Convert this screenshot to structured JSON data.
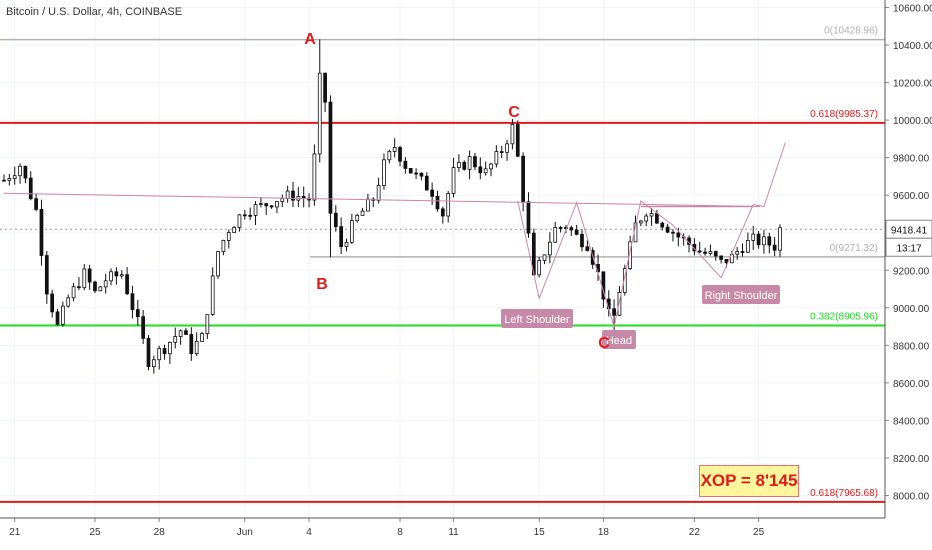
{
  "header": {
    "title": "Bitcoin / U.S. Dollar, 4h, COINBASE"
  },
  "chart_data": {
    "type": "candlestick",
    "ylim": [
      7880,
      10640
    ],
    "y_ticks": [
      "10600.00",
      "10400.00",
      "10200.00",
      "10000.00",
      "9800.00",
      "9600.00",
      "9400.00",
      "9200.00",
      "9000.00",
      "8800.00",
      "8600.00",
      "8400.00",
      "8200.00",
      "8000.00"
    ],
    "x_ticks": [
      "21",
      "25",
      "28",
      "Jun",
      "4",
      "8",
      "11",
      "15",
      "18",
      "22",
      "25"
    ],
    "current_price": {
      "label": "9418.41",
      "value": 9418.41
    },
    "countdown": "13:17",
    "fib_levels": [
      {
        "label": "0(10428.96)",
        "value": 10428.96,
        "color": "#b0b0b0"
      },
      {
        "label": "0.618(9985.37)",
        "value": 9985.37,
        "color": "#e01b1b"
      },
      {
        "label": "0(9271.32)",
        "value": 9271.32,
        "color": "#b0b0b0"
      },
      {
        "label": "0.382(8905.96)",
        "value": 8905.96,
        "color": "#22dd22"
      },
      {
        "label": "0.618(7965.68)",
        "value": 7965.68,
        "color": "#e01b1b"
      }
    ],
    "points": [
      {
        "label": "A",
        "x_index": 59,
        "y": 10430
      },
      {
        "label": "B",
        "x_index": 61,
        "y": 9200
      },
      {
        "label": "C",
        "x_index": 95,
        "y": 9990
      },
      {
        "label": "C",
        "x_index": 114,
        "y": 8870
      }
    ],
    "pattern_labels": [
      "Left Shoulder",
      "Head",
      "Right Shoulder"
    ],
    "neckline": {
      "start": [
        0,
        9610
      ],
      "end": [
        145,
        9540
      ]
    },
    "xop_box": "XOP = 8'145",
    "colors": {
      "up": "#26a69a",
      "down": "#111111",
      "candle": "#111111"
    }
  }
}
